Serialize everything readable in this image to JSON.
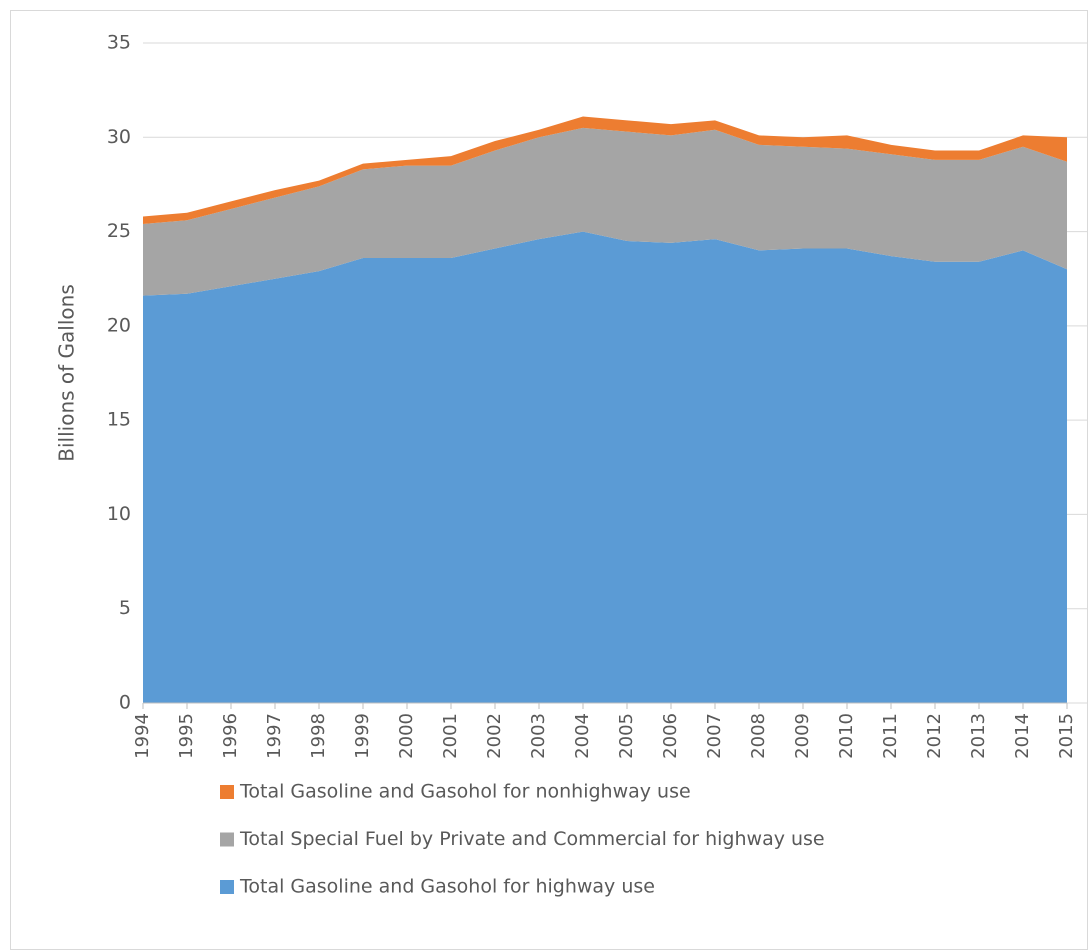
{
  "chart_data": {
    "type": "stacked-area",
    "y_label": "Billions of Gallons",
    "x": [
      1994,
      1995,
      1996,
      1997,
      1998,
      1999,
      2000,
      2001,
      2002,
      2003,
      2004,
      2005,
      2006,
      2007,
      2008,
      2009,
      2010,
      2011,
      2012,
      2013,
      2014,
      2015
    ],
    "xlim": [
      1994,
      2015
    ],
    "ylim": [
      0,
      35
    ],
    "yticks": [
      0,
      5,
      10,
      15,
      20,
      25,
      30,
      35
    ],
    "grid": true,
    "legend": "bottom",
    "series": [
      {
        "name": "Total Gasoline and Gasohol for highway use",
        "color": "#5b9bd5",
        "values": [
          21.6,
          21.7,
          22.1,
          22.5,
          22.9,
          23.6,
          23.6,
          23.6,
          24.1,
          24.6,
          25.0,
          24.5,
          24.4,
          24.6,
          24.0,
          24.1,
          24.1,
          23.7,
          23.4,
          23.4,
          24.0,
          23.0
        ]
      },
      {
        "name": "Total Special Fuel by Private and Commercial for highway use",
        "color": "#a5a5a5",
        "values": [
          3.8,
          3.9,
          4.1,
          4.3,
          4.5,
          4.7,
          4.9,
          4.9,
          5.2,
          5.4,
          5.5,
          5.8,
          5.7,
          5.8,
          5.6,
          5.4,
          5.3,
          5.4,
          5.4,
          5.4,
          5.5,
          5.7
        ]
      },
      {
        "name": "Total Gasoline and Gasohol for nonhighway use",
        "color": "#ed7d31",
        "values": [
          0.4,
          0.4,
          0.4,
          0.4,
          0.3,
          0.3,
          0.3,
          0.5,
          0.5,
          0.4,
          0.6,
          0.6,
          0.6,
          0.5,
          0.5,
          0.5,
          0.7,
          0.5,
          0.5,
          0.5,
          0.6,
          1.3
        ]
      }
    ]
  }
}
